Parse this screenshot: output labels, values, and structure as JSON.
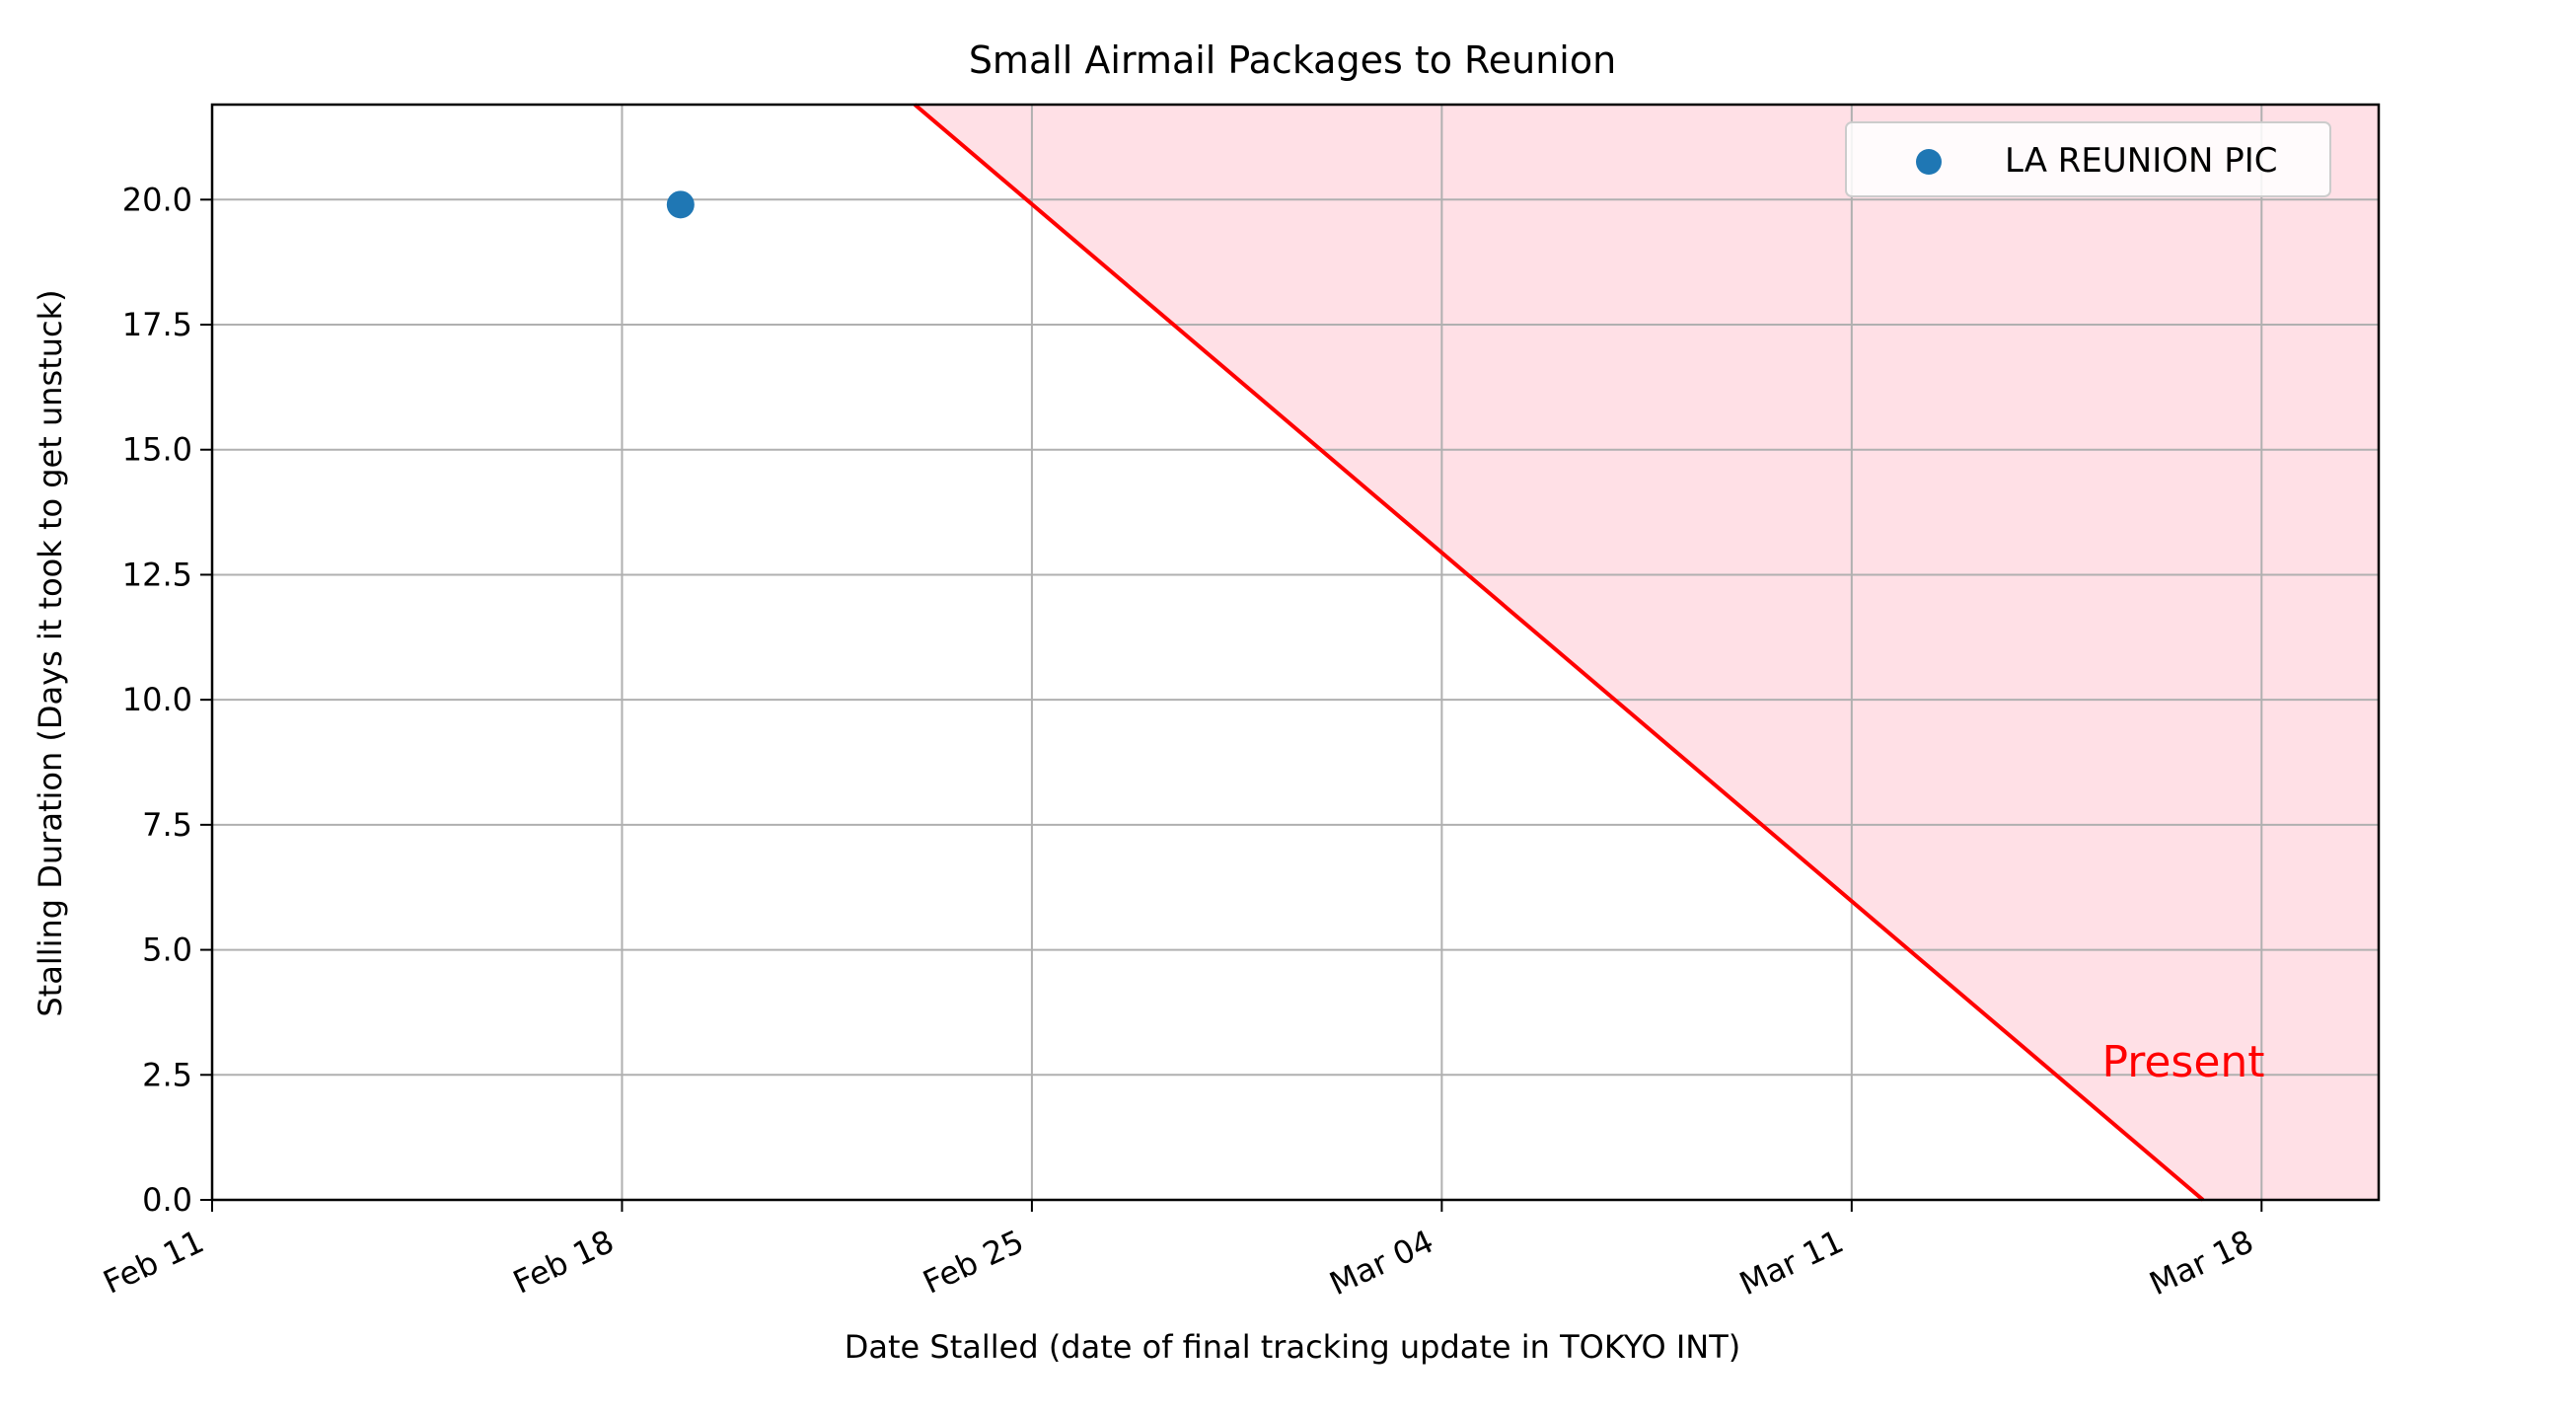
{
  "chart_data": {
    "type": "scatter",
    "title": "Small Airmail Packages to Reunion",
    "xlabel": "Date Stalled (date of final tracking update in TOKYO INT)",
    "ylabel": "Stalling Duration (Days it took to get unstuck)",
    "x_axis_type": "date",
    "xlim": [
      "2025-02-11",
      "2025-03-20"
    ],
    "ylim": [
      0,
      21.9
    ],
    "x_ticks": [
      {
        "date": "2025-02-11",
        "label": "Feb 11"
      },
      {
        "date": "2025-02-18",
        "label": "Feb 18"
      },
      {
        "date": "2025-02-25",
        "label": "Feb 25"
      },
      {
        "date": "2025-03-04",
        "label": "Mar 04"
      },
      {
        "date": "2025-03-11",
        "label": "Mar 11"
      },
      {
        "date": "2025-03-18",
        "label": "Mar 18"
      }
    ],
    "y_ticks": [
      0.0,
      2.5,
      5.0,
      7.5,
      10.0,
      12.5,
      15.0,
      17.5,
      20.0
    ],
    "y_tick_labels": [
      "0.0",
      "2.5",
      "5.0",
      "7.5",
      "10.0",
      "12.5",
      "15.0",
      "17.5",
      "20.0"
    ],
    "grid": true,
    "legend_position": "top-right",
    "series": [
      {
        "name": "LA REUNION PIC",
        "color": "#1f77b4",
        "points": [
          {
            "x": "2025-02-19",
            "y": 19.9
          }
        ]
      }
    ],
    "boundary_line": {
      "color": "#ff0000",
      "label": "Present",
      "present_date": "2025-03-17",
      "points": [
        {
          "x": "2025-02-23",
          "y": 21.9
        },
        {
          "x": "2025-03-17",
          "y": 0
        }
      ]
    },
    "shaded_region": {
      "color": "#ffe0e6"
    }
  }
}
